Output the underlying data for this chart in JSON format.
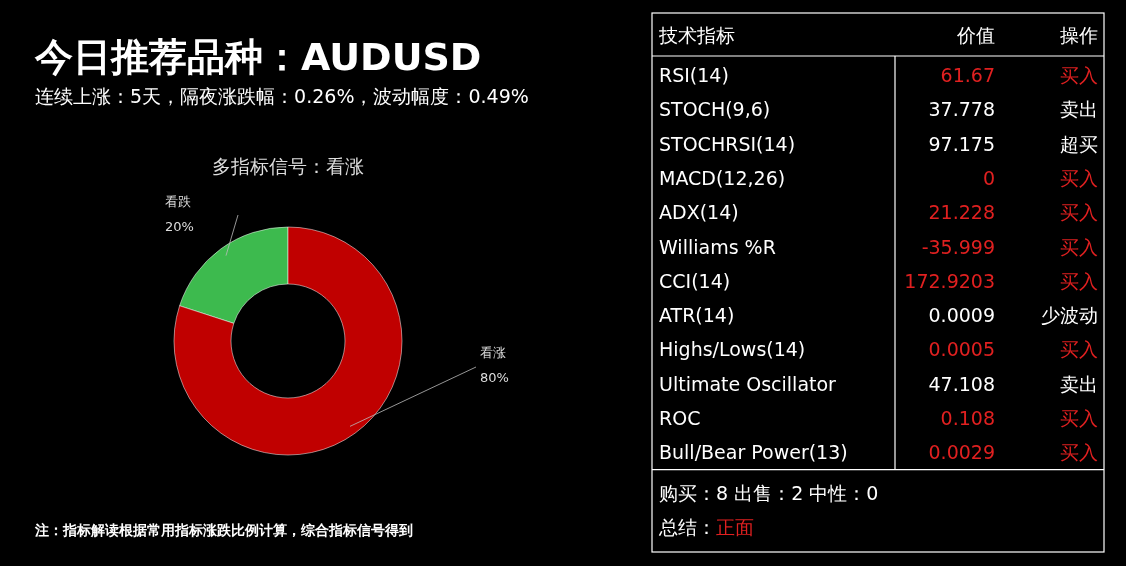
{
  "chart_data": [
    {
      "type": "other",
      "title": "今日推荐品种：AUDUSD",
      "subtitle": "连续上涨：5天，隔夜涨跌幅：0.26%，波动幅度：0.49%",
      "annotations": [
        "注：指标解读根据常用指标涨跌比例计算，综合指标信号得到"
      ]
    },
    {
      "type": "donut",
      "title": "多指标信号：看涨",
      "categories": [
        "看跌",
        "看涨"
      ],
      "values": [
        20,
        80
      ],
      "colors": [
        "#3dba4e",
        "#c00000"
      ],
      "value_labels": [
        "20%",
        "80%"
      ]
    },
    {
      "type": "other",
      "categories": [
        "RSI(14)",
        "STOCH(9,6)",
        "STOCHRSI(14)",
        "MACD(12,26)",
        "ADX(14)",
        "Williams %R",
        "CCI(14)",
        "ATR(14)",
        "Highs/Lows(14)",
        "Ultimate Oscillator",
        "ROC",
        "Bull/Bear Power(13)"
      ],
      "colors": [
        "#e02020",
        "#ffffff",
        "#ffffff",
        "#e02020",
        "#e02020",
        "#e02020",
        "#e02020",
        "#ffffff",
        "#e02020",
        "#ffffff",
        "#e02020",
        "#e02020"
      ],
      "annotations": [
        "技术指标",
        "价值",
        "操作",
        "61.67",
        "37.778",
        "97.175",
        "0",
        "21.228",
        "-35.999",
        "172.9203",
        "0.0009",
        "0.0005",
        "47.108",
        "0.108",
        "0.0029",
        "买入",
        "卖出",
        "超买",
        "买入",
        "买入",
        "买入",
        "买入",
        "少波动",
        "买入",
        "卖出",
        "买入",
        "买入",
        "购买：8 出售：2 中性：0",
        "总结：",
        "正面"
      ]
    }
  ]
}
